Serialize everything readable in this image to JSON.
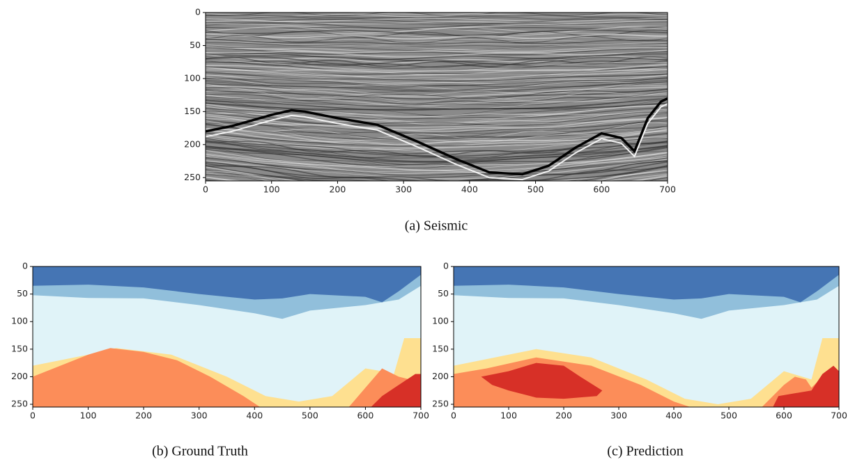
{
  "panels": [
    {
      "caption": "(a) Seismic",
      "xlim": [
        0,
        700
      ],
      "ylim": [
        255,
        0
      ],
      "xticks": [
        0,
        100,
        200,
        300,
        400,
        500,
        600,
        700
      ],
      "yticks": [
        0,
        50,
        100,
        150,
        200,
        250
      ]
    },
    {
      "caption": "(b) Ground Truth",
      "xlim": [
        0,
        700
      ],
      "ylim": [
        255,
        0
      ],
      "xticks": [
        0,
        100,
        200,
        300,
        400,
        500,
        600,
        700
      ],
      "yticks": [
        0,
        50,
        100,
        150,
        200,
        250
      ]
    },
    {
      "caption": "(c) Prediction",
      "xlim": [
        0,
        700
      ],
      "ylim": [
        255,
        0
      ],
      "xticks": [
        0,
        100,
        200,
        300,
        400,
        500,
        600,
        700
      ],
      "yticks": [
        0,
        50,
        100,
        150,
        200,
        250
      ]
    }
  ]
}
